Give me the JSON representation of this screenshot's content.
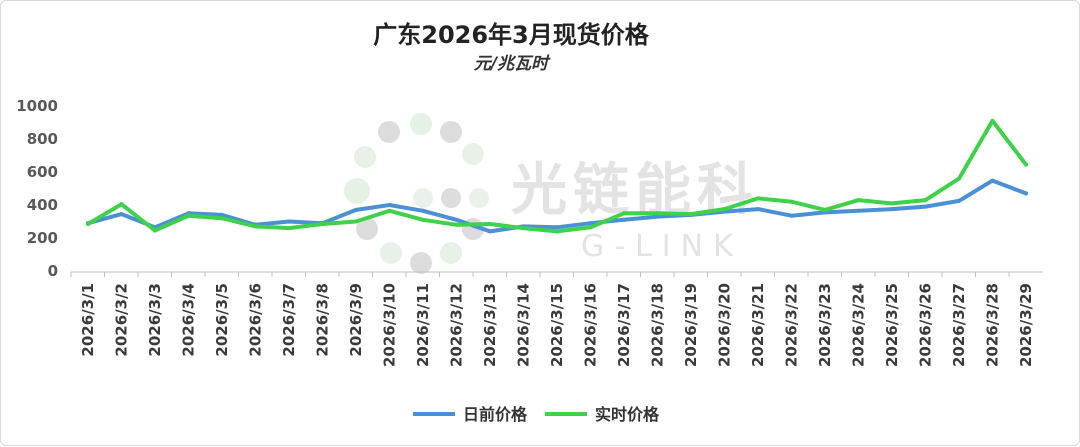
{
  "chart_data": {
    "type": "line",
    "title": "广东2026年3月现货价格",
    "subtitle": "元/兆瓦时",
    "categories": [
      "2026/3/1",
      "2026/3/2",
      "2026/3/3",
      "2026/3/4",
      "2026/3/5",
      "2026/3/6",
      "2026/3/7",
      "2026/3/8",
      "2026/3/9",
      "2026/3/10",
      "2026/3/11",
      "2026/3/12",
      "2026/3/13",
      "2026/3/14",
      "2026/3/15",
      "2026/3/16",
      "2026/3/17",
      "2026/3/18",
      "2026/3/19",
      "2026/3/20",
      "2026/3/21",
      "2026/3/22",
      "2026/3/23",
      "2026/3/24",
      "2026/3/25",
      "2026/3/26",
      "2026/3/27",
      "2026/3/28",
      "2026/3/29"
    ],
    "yticks": [
      0,
      200,
      400,
      600,
      800,
      1000
    ],
    "ylim": [
      0,
      1000
    ],
    "grid": false,
    "legend_position": "bottom",
    "series": [
      {
        "name": "日前价格",
        "color": "#4a90d6",
        "values": [
          290,
          345,
          265,
          350,
          340,
          280,
          300,
          290,
          370,
          400,
          365,
          310,
          240,
          270,
          265,
          290,
          310,
          330,
          340,
          360,
          375,
          335,
          355,
          365,
          375,
          390,
          425,
          548,
          470
        ]
      },
      {
        "name": "实时价格",
        "color": "#3fd14a",
        "values": [
          285,
          405,
          245,
          335,
          320,
          270,
          260,
          285,
          300,
          365,
          310,
          280,
          285,
          260,
          240,
          265,
          350,
          350,
          345,
          375,
          440,
          420,
          370,
          430,
          410,
          430,
          560,
          910,
          645
        ]
      }
    ]
  },
  "watermark": {
    "text": "光链能科",
    "subtext": "G-LINK"
  }
}
